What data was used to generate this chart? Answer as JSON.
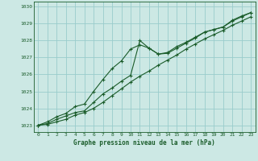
{
  "title": "Graphe pression niveau de la mer (hPa)",
  "xlim": [
    -0.5,
    23.5
  ],
  "ylim": [
    1022.6,
    1030.3
  ],
  "yticks": [
    1023,
    1024,
    1025,
    1026,
    1027,
    1028,
    1029,
    1030
  ],
  "xticks": [
    0,
    1,
    2,
    3,
    4,
    5,
    6,
    7,
    8,
    9,
    10,
    11,
    12,
    13,
    14,
    15,
    16,
    17,
    18,
    19,
    20,
    21,
    22,
    23
  ],
  "bg_color": "#cce8e4",
  "grid_color": "#99cccc",
  "line_color": "#1a5c2a",
  "line1_y": [
    1023.0,
    1023.2,
    1023.5,
    1023.7,
    1024.1,
    1024.25,
    1025.0,
    1025.7,
    1026.35,
    1026.8,
    1027.5,
    1027.75,
    1027.55,
    1027.2,
    1027.3,
    1027.65,
    1027.9,
    1028.2,
    1028.5,
    1028.65,
    1028.8,
    1029.2,
    1029.45,
    1029.65
  ],
  "line2_y": [
    1023.0,
    1023.1,
    1023.35,
    1023.55,
    1023.75,
    1023.85,
    1024.35,
    1024.85,
    1025.2,
    1025.6,
    1025.95,
    1028.0,
    1027.55,
    1027.2,
    1027.25,
    1027.55,
    1027.85,
    1028.15,
    1028.5,
    1028.65,
    1028.8,
    1029.15,
    1029.4,
    1029.65
  ],
  "line3_y": [
    1023.0,
    1023.05,
    1023.2,
    1023.35,
    1023.6,
    1023.75,
    1024.0,
    1024.35,
    1024.75,
    1025.15,
    1025.55,
    1025.9,
    1026.2,
    1026.55,
    1026.85,
    1027.15,
    1027.5,
    1027.8,
    1028.1,
    1028.35,
    1028.6,
    1028.9,
    1029.15,
    1029.4
  ]
}
